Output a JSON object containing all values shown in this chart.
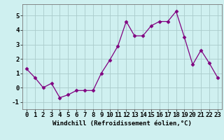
{
  "x": [
    0,
    1,
    2,
    3,
    4,
    5,
    6,
    7,
    8,
    9,
    10,
    11,
    12,
    13,
    14,
    15,
    16,
    17,
    18,
    19,
    20,
    21,
    22,
    23
  ],
  "y": [
    1.3,
    0.7,
    0.0,
    0.3,
    -0.7,
    -0.5,
    -0.2,
    -0.2,
    -0.2,
    1.0,
    1.9,
    2.9,
    4.6,
    3.6,
    3.6,
    4.3,
    4.6,
    4.6,
    5.3,
    3.5,
    1.6,
    2.6,
    1.7,
    0.7
  ],
  "line_color": "#800080",
  "marker": "D",
  "markersize": 2.5,
  "linewidth": 0.9,
  "bg_color": "#cff0f0",
  "grid_color": "#aacccc",
  "xlabel": "Windchill (Refroidissement éolien,°C)",
  "xlabel_fontsize": 6.5,
  "yticks": [
    -1,
    0,
    1,
    2,
    3,
    4,
    5
  ],
  "xticks": [
    0,
    1,
    2,
    3,
    4,
    5,
    6,
    7,
    8,
    9,
    10,
    11,
    12,
    13,
    14,
    15,
    16,
    17,
    18,
    19,
    20,
    21,
    22,
    23
  ],
  "ylim": [
    -1.5,
    5.8
  ],
  "xlim": [
    -0.5,
    23.5
  ],
  "tick_fontsize": 6.5,
  "spine_color": "#777777"
}
